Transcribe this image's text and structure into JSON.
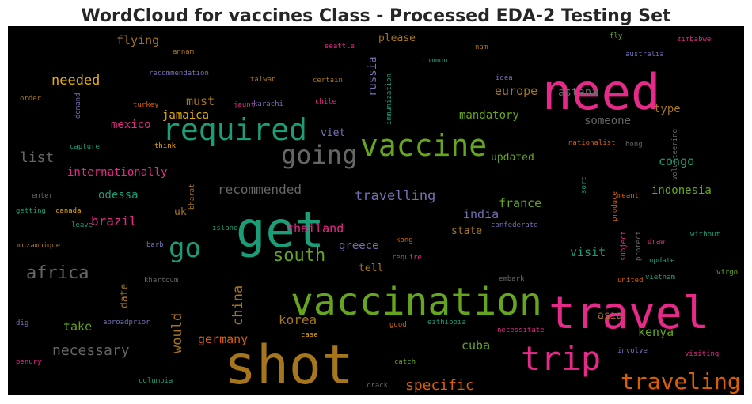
{
  "title": "WordCloud for vaccines Class - Processed EDA-2 Testing Set",
  "background": "#000000",
  "words": [
    {
      "text": "need",
      "color": "#e7298a"
    },
    {
      "text": "get",
      "color": "#1b9e77"
    },
    {
      "text": "shot",
      "color": "#a6761d"
    },
    {
      "text": "vaccination",
      "color": "#66a61e"
    },
    {
      "text": "travel",
      "color": "#e7298a"
    },
    {
      "text": "trip",
      "color": "#e7298a"
    },
    {
      "text": "vaccine",
      "color": "#66a61e"
    },
    {
      "text": "required",
      "color": "#1b9e77"
    },
    {
      "text": "going",
      "color": "#666666"
    },
    {
      "text": "go",
      "color": "#1b9e77"
    },
    {
      "text": "traveling",
      "color": "#d95f02"
    },
    {
      "text": "south",
      "color": "#66a61e"
    },
    {
      "text": "africa",
      "color": "#666666"
    },
    {
      "text": "necessary",
      "color": "#666666"
    },
    {
      "text": "specific",
      "color": "#d95f02"
    },
    {
      "text": "travelling",
      "color": "#7570b3"
    },
    {
      "text": "recommended",
      "color": "#666666"
    },
    {
      "text": "korea",
      "color": "#a6761d"
    },
    {
      "text": "china",
      "color": "#a6761d"
    },
    {
      "text": "would",
      "color": "#a6761d"
    },
    {
      "text": "germany",
      "color": "#d95f02"
    },
    {
      "text": "take",
      "color": "#66a61e"
    },
    {
      "text": "cuba",
      "color": "#66a61e"
    },
    {
      "text": "kenya",
      "color": "#66a61e"
    },
    {
      "text": "asia",
      "color": "#a6761d"
    },
    {
      "text": "thailand",
      "color": "#e7298a"
    },
    {
      "text": "brazil",
      "color": "#e7298a"
    },
    {
      "text": "india",
      "color": "#7570b3"
    },
    {
      "text": "france",
      "color": "#66a61e"
    },
    {
      "text": "state",
      "color": "#a6761d"
    },
    {
      "text": "greece",
      "color": "#7570b3"
    },
    {
      "text": "tell",
      "color": "#a6761d"
    },
    {
      "text": "visit",
      "color": "#1b9e77"
    },
    {
      "text": "odessa",
      "color": "#1b9e77"
    },
    {
      "text": "uk",
      "color": "#a6761d"
    },
    {
      "text": "list",
      "color": "#666666"
    },
    {
      "text": "internationally",
      "color": "#e7298a"
    },
    {
      "text": "mexico",
      "color": "#e7298a"
    },
    {
      "text": "jamaica",
      "color": "#e6ab02"
    },
    {
      "text": "must",
      "color": "#a6761d"
    },
    {
      "text": "needed",
      "color": "#e6ab02"
    },
    {
      "text": "flying",
      "color": "#a6761d"
    },
    {
      "text": "please",
      "color": "#a6761d"
    },
    {
      "text": "europe",
      "color": "#a6761d"
    },
    {
      "text": "astana",
      "color": "#666666"
    },
    {
      "text": "mandatory",
      "color": "#66a61e"
    },
    {
      "text": "someone",
      "color": "#666666"
    },
    {
      "text": "type",
      "color": "#a6761d"
    },
    {
      "text": "updated",
      "color": "#66a61e"
    },
    {
      "text": "congo",
      "color": "#1b9e77"
    },
    {
      "text": "indonesia",
      "color": "#66a61e"
    },
    {
      "text": "russia",
      "color": "#7570b3"
    },
    {
      "text": "viet",
      "color": "#7570b3"
    },
    {
      "text": "date",
      "color": "#a6761d"
    },
    {
      "text": "annam",
      "color": "#a6761d"
    },
    {
      "text": "recommendation",
      "color": "#7570b3"
    },
    {
      "text": "taiwan",
      "color": "#a6761d"
    },
    {
      "text": "seattle",
      "color": "#e7298a"
    },
    {
      "text": "nam",
      "color": "#a6761d"
    },
    {
      "text": "common",
      "color": "#1b9e77"
    },
    {
      "text": "idea",
      "color": "#7570b3"
    },
    {
      "text": "certain",
      "color": "#a6761d"
    },
    {
      "text": "fly",
      "color": "#66a61e"
    },
    {
      "text": "zimbabwe",
      "color": "#e7298a"
    },
    {
      "text": "australia",
      "color": "#7570b3"
    },
    {
      "text": "order",
      "color": "#a6761d"
    },
    {
      "text": "demand",
      "color": "#7570b3"
    },
    {
      "text": "turkey",
      "color": "#d95f02"
    },
    {
      "text": "jaunt",
      "color": "#e7298a"
    },
    {
      "text": "karachi",
      "color": "#7570b3"
    },
    {
      "text": "chile",
      "color": "#e7298a"
    },
    {
      "text": "immunization",
      "color": "#1b9e77"
    },
    {
      "text": "capture",
      "color": "#1b9e77"
    },
    {
      "text": "think",
      "color": "#e6ab02"
    },
    {
      "text": "nationalist",
      "color": "#d95f02"
    },
    {
      "text": "hong",
      "color": "#666666"
    },
    {
      "text": "volunteering",
      "color": "#666666"
    },
    {
      "text": "enter",
      "color": "#666666"
    },
    {
      "text": "getting",
      "color": "#1b9e77"
    },
    {
      "text": "canada",
      "color": "#e6ab02"
    },
    {
      "text": "bharat",
      "color": "#a6761d"
    },
    {
      "text": "leave",
      "color": "#1b9e77"
    },
    {
      "text": "island",
      "color": "#1b9e77"
    },
    {
      "text": "confederate",
      "color": "#7570b3"
    },
    {
      "text": "sort",
      "color": "#1b9e77"
    },
    {
      "text": "produce",
      "color": "#d95f02"
    },
    {
      "text": "meant",
      "color": "#d95f02"
    },
    {
      "text": "mozambique",
      "color": "#a6761d"
    },
    {
      "text": "barb",
      "color": "#7570b3"
    },
    {
      "text": "kong",
      "color": "#d95f02"
    },
    {
      "text": "require",
      "color": "#e7298a"
    },
    {
      "text": "protect",
      "color": "#666666"
    },
    {
      "text": "subject",
      "color": "#e7298a"
    },
    {
      "text": "draw",
      "color": "#e7298a"
    },
    {
      "text": "update",
      "color": "#1b9e77"
    },
    {
      "text": "without",
      "color": "#1b9e77"
    },
    {
      "text": "khartoum",
      "color": "#666666"
    },
    {
      "text": "virgo",
      "color": "#66a61e"
    },
    {
      "text": "united",
      "color": "#d95f02"
    },
    {
      "text": "vietnam",
      "color": "#1b9e77"
    },
    {
      "text": "embark",
      "color": "#666666"
    },
    {
      "text": "dig",
      "color": "#7570b3"
    },
    {
      "text": "abroadprior",
      "color": "#7570b3"
    },
    {
      "text": "good",
      "color": "#d95f02"
    },
    {
      "text": "eithiopia",
      "color": "#1b9e77"
    },
    {
      "text": "case",
      "color": "#e6ab02"
    },
    {
      "text": "necessitate",
      "color": "#e7298a"
    },
    {
      "text": "involve",
      "color": "#7570b3"
    },
    {
      "text": "visiting",
      "color": "#e7298a"
    },
    {
      "text": "penury",
      "color": "#e7298a"
    },
    {
      "text": "catch",
      "color": "#66a61e"
    },
    {
      "text": "columbia",
      "color": "#1b9e77"
    },
    {
      "text": "crack",
      "color": "#666666"
    }
  ]
}
